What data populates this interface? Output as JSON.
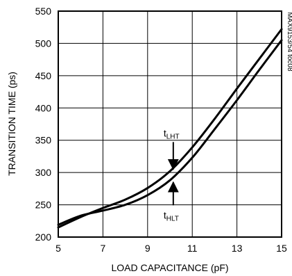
{
  "chart_data": {
    "type": "line",
    "title": "",
    "xlabel": "LOAD CAPACITANCE (pF)",
    "ylabel": "TRANSITION TIME (ps)",
    "xlim": [
      5,
      15
    ],
    "ylim": [
      200,
      550
    ],
    "xticks": [
      5,
      7,
      9,
      11,
      13,
      15
    ],
    "yticks": [
      200,
      250,
      300,
      350,
      400,
      450,
      500,
      550
    ],
    "x_tick_labels": [
      "5",
      "7",
      "9",
      "11",
      "13",
      "15"
    ],
    "y_tick_labels": [
      "200",
      "250",
      "300",
      "350",
      "400",
      "450",
      "500",
      "550"
    ],
    "grid": true,
    "figure_code": "MAX9153/54 toc08",
    "series": [
      {
        "name": "tLHT",
        "x": [
          5,
          6,
          7,
          8,
          9,
          10,
          11,
          12,
          13,
          14,
          15
        ],
        "y": [
          215,
          231,
          245,
          258,
          276,
          302,
          339,
          383,
          430,
          476,
          522
        ]
      },
      {
        "name": "tHLT",
        "x": [
          5,
          6,
          7,
          8,
          9,
          10,
          11,
          12,
          13,
          14,
          15
        ],
        "y": [
          219,
          233,
          241,
          250,
          265,
          288,
          323,
          367,
          412,
          459,
          505
        ]
      }
    ],
    "annotations": [
      {
        "main": "t",
        "sub": "LHT",
        "x": 10.15,
        "y": 302
      },
      {
        "main": "t",
        "sub": "HLT",
        "x": 10.15,
        "y": 288
      }
    ]
  }
}
